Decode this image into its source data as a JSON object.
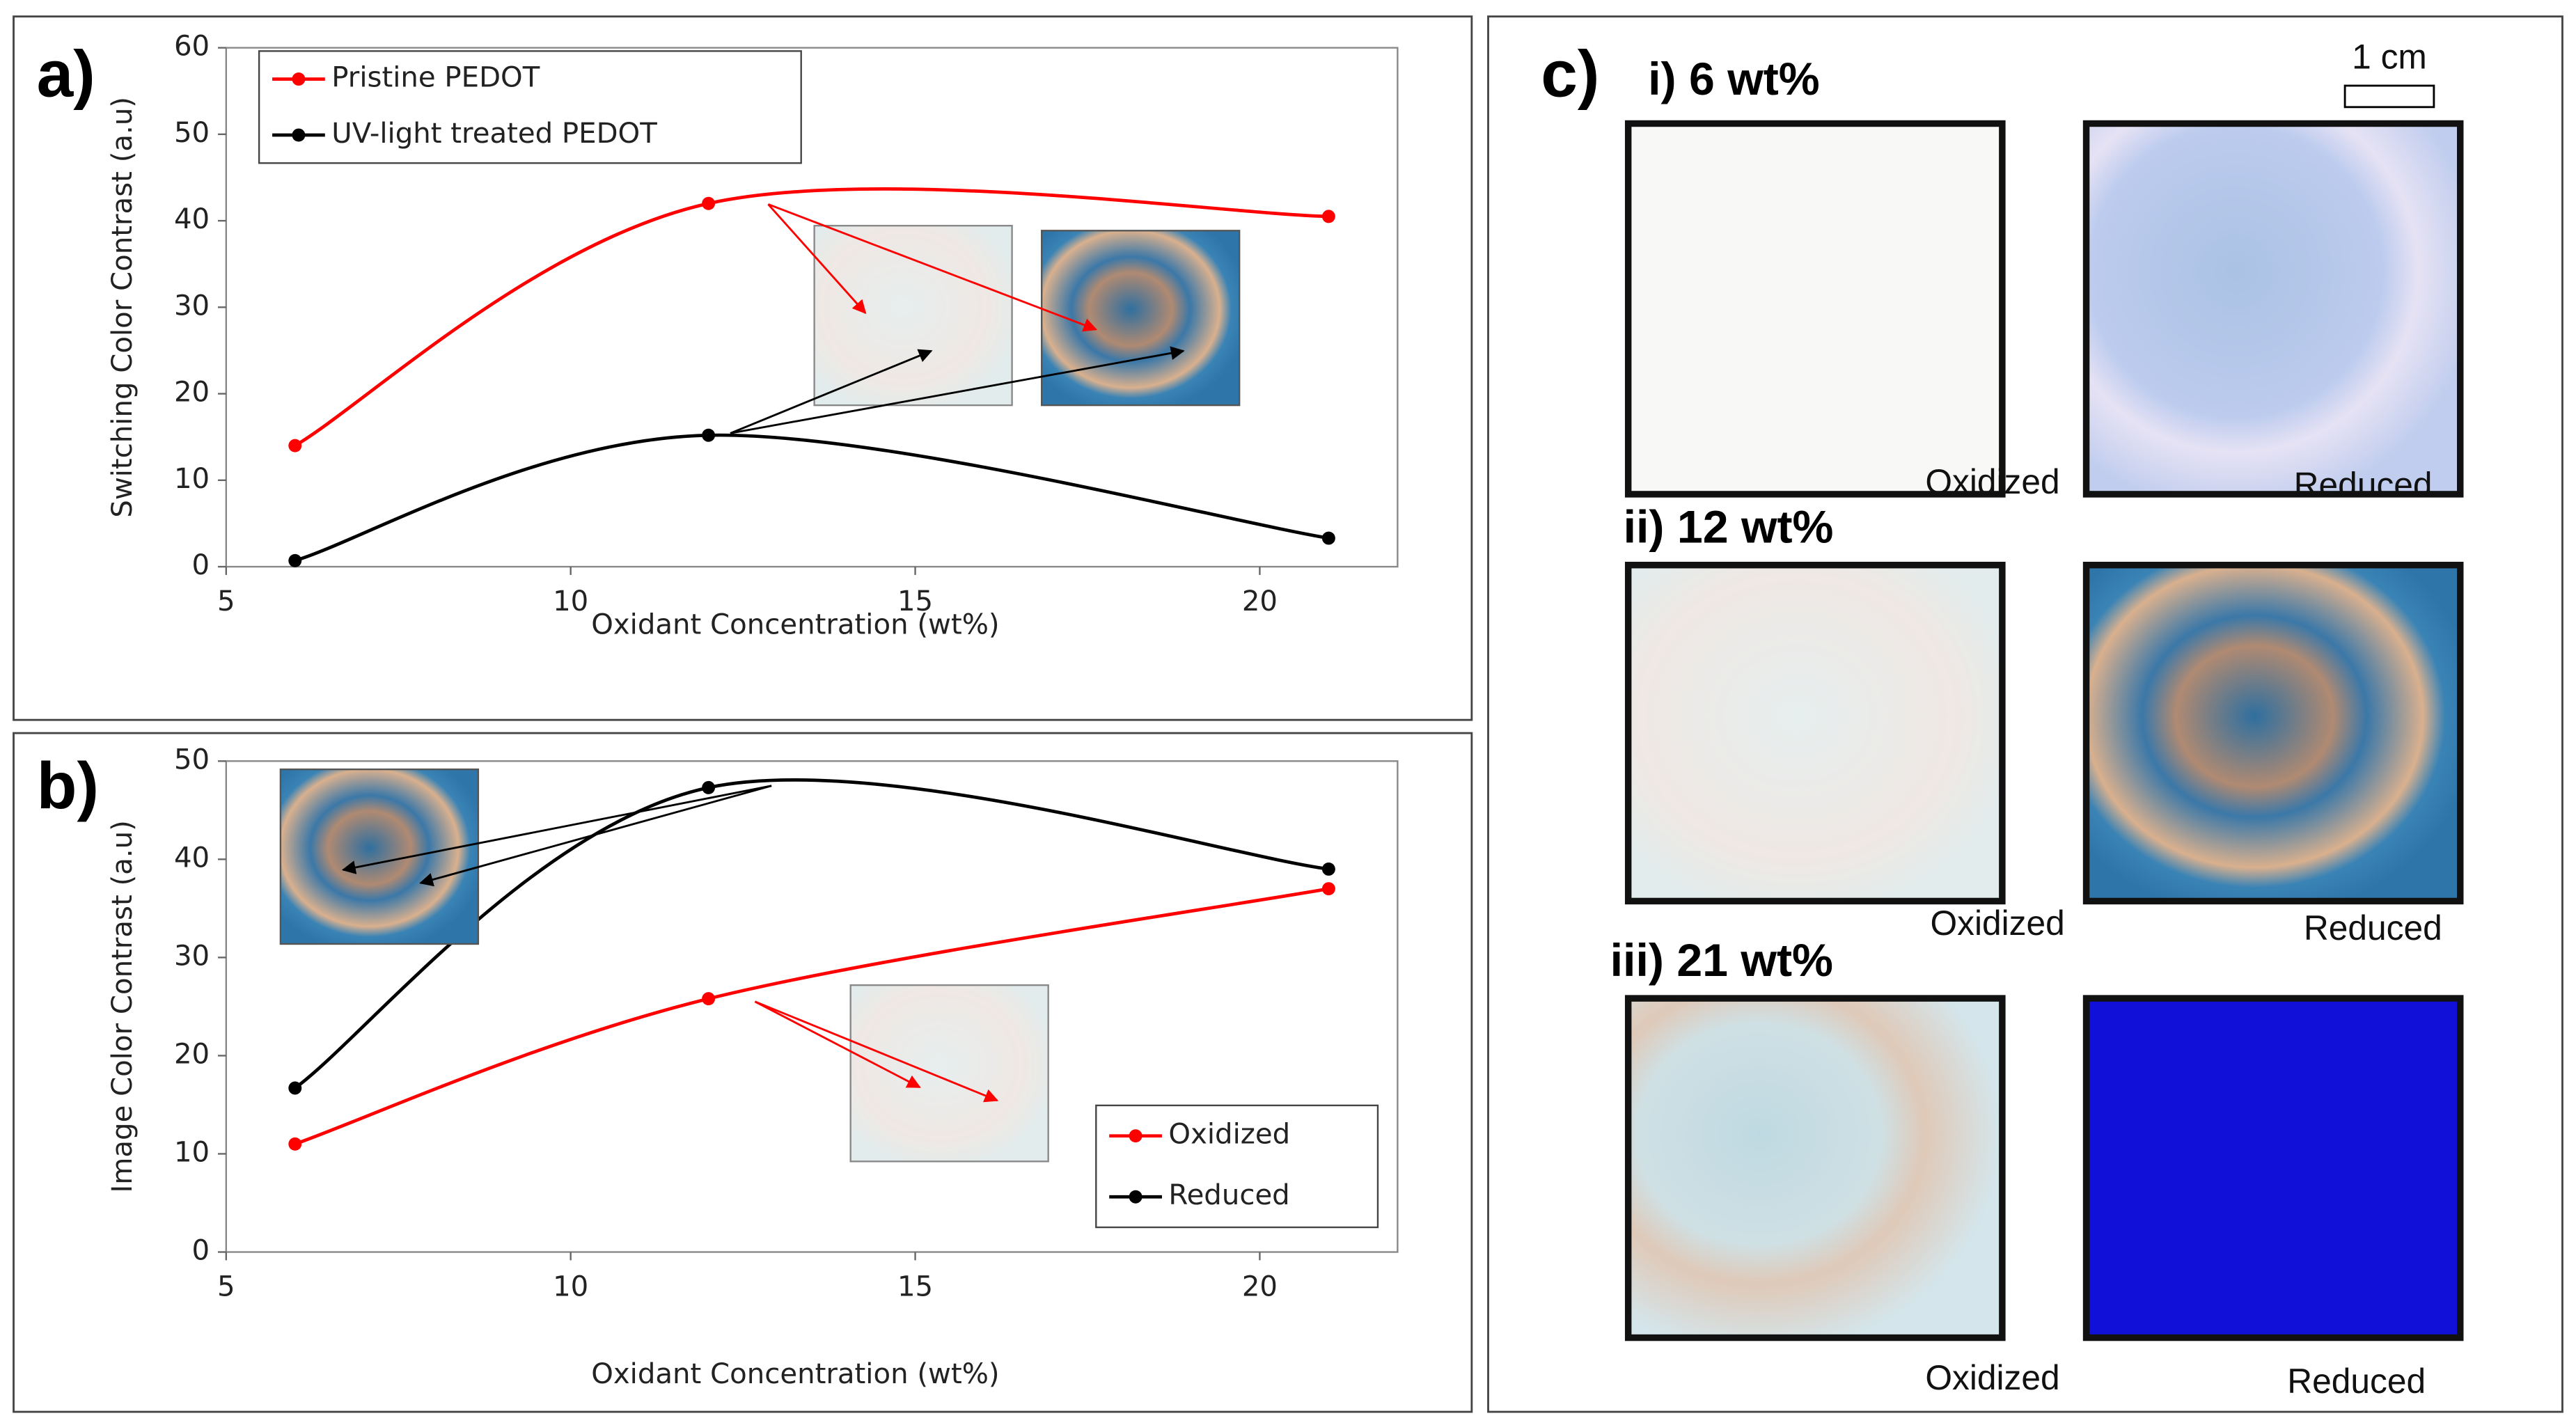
{
  "chart_data": [
    {
      "type": "line",
      "panel_label": "a)",
      "x_label": "Oxidant Concentration (wt%)",
      "y_label": "Switching Color Contrast (a.u)",
      "x": [
        6,
        12,
        21
      ],
      "series": [
        {
          "name": "Pristine PEDOT",
          "color": "#ff0000",
          "values": [
            14,
            42,
            40.5
          ]
        },
        {
          "name": "UV-light treated PEDOT",
          "color": "#000000",
          "values": [
            0.7,
            15.2,
            3.3
          ]
        }
      ],
      "xlim": [
        5,
        22
      ],
      "xticks": [
        5,
        10,
        15,
        20
      ],
      "ylim": [
        0,
        60
      ],
      "yticks": [
        0,
        10,
        20,
        30,
        40,
        50,
        60
      ],
      "smooth": true,
      "legend": "top-left"
    },
    {
      "type": "line",
      "panel_label": "b)",
      "x_label": "Oxidant Concentration (wt%)",
      "y_label": "Image Color Contrast  (a.u)",
      "x": [
        6,
        12,
        21
      ],
      "series": [
        {
          "name": "Oxidized",
          "color": "#ff0000",
          "values": [
            11,
            25.8,
            37
          ]
        },
        {
          "name": "Reduced",
          "color": "#000000",
          "values": [
            16.7,
            47.3,
            39
          ]
        }
      ],
      "xlim": [
        5,
        22
      ],
      "xticks": [
        5,
        10,
        15,
        20
      ],
      "ylim": [
        0,
        50
      ],
      "yticks": [
        0,
        10,
        20,
        30,
        40,
        50
      ],
      "smooth": true,
      "legend": "bottom-right"
    }
  ],
  "panel_c": {
    "label": "c)",
    "scale_bar": "1 cm",
    "rows": [
      {
        "title": "i) 6 wt%",
        "left": "Oxidized",
        "right": "Reduced"
      },
      {
        "title": "ii) 12 wt%",
        "left": "Oxidized",
        "right": "Reduced"
      },
      {
        "title": "iii) 21 wt%",
        "left": "Oxidized",
        "right": "Reduced"
      }
    ]
  }
}
